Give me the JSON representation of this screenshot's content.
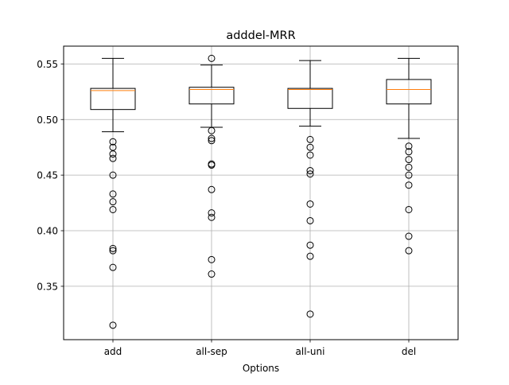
{
  "chart_data": {
    "type": "box",
    "title": "adddel-MRR",
    "xlabel": "Options",
    "ylabel": "",
    "categories": [
      "add",
      "all-sep",
      "all-uni",
      "del"
    ],
    "ylim": [
      0.302,
      0.566
    ],
    "yticks": [
      0.35,
      0.4,
      0.45,
      0.5,
      0.55
    ],
    "ytick_labels": [
      "0.35",
      "0.40",
      "0.45",
      "0.50",
      "0.55"
    ],
    "grid": true,
    "series": [
      {
        "category": "add",
        "whisker_low": 0.489,
        "q1": 0.509,
        "median": 0.526,
        "q3": 0.528,
        "whisker_high": 0.555,
        "outliers": [
          0.48,
          0.475,
          0.469,
          0.465,
          0.45,
          0.433,
          0.426,
          0.419,
          0.384,
          0.382,
          0.367,
          0.315
        ]
      },
      {
        "category": "all-sep",
        "whisker_low": 0.493,
        "q1": 0.514,
        "median": 0.527,
        "q3": 0.529,
        "whisker_high": 0.549,
        "outliers": [
          0.555,
          0.49,
          0.483,
          0.481,
          0.46,
          0.459,
          0.437,
          0.416,
          0.412,
          0.374,
          0.361
        ]
      },
      {
        "category": "all-uni",
        "whisker_low": 0.494,
        "q1": 0.51,
        "median": 0.527,
        "q3": 0.528,
        "whisker_high": 0.553,
        "outliers": [
          0.482,
          0.475,
          0.468,
          0.454,
          0.451,
          0.424,
          0.409,
          0.387,
          0.377,
          0.325
        ]
      },
      {
        "category": "del",
        "whisker_low": 0.483,
        "q1": 0.514,
        "median": 0.527,
        "q3": 0.536,
        "whisker_high": 0.555,
        "outliers": [
          0.476,
          0.471,
          0.464,
          0.457,
          0.45,
          0.441,
          0.419,
          0.395,
          0.382
        ]
      }
    ],
    "colors": {
      "box": "#000000",
      "median": "#ff7f0e",
      "grid": "#b0b0b0"
    }
  }
}
